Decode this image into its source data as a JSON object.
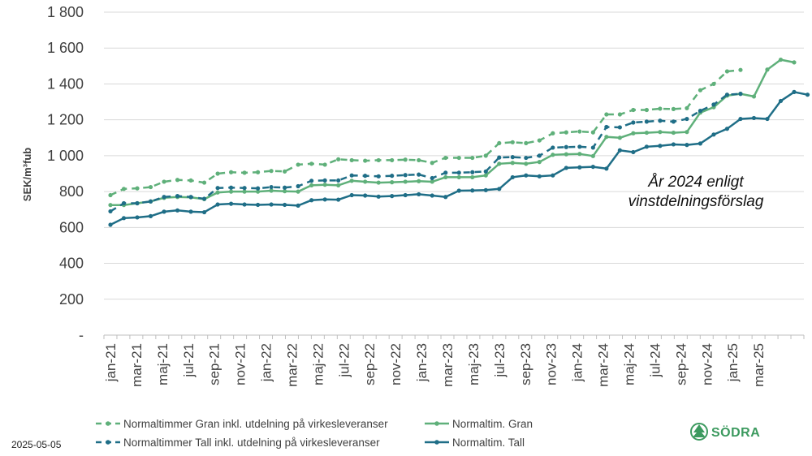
{
  "chart_data": {
    "type": "line",
    "title": "",
    "xlabel": "",
    "ylabel": "SEK/m³fub",
    "ylim": [
      0,
      1800
    ],
    "y_ticks": [
      "-",
      "200",
      "400",
      "600",
      "800",
      "1 000",
      "1 200",
      "1 400",
      "1 600",
      "1 800"
    ],
    "x_tick_labels": [
      "jan-21",
      "mar-21",
      "maj-21",
      "jul-21",
      "sep-21",
      "nov-21",
      "jan-22",
      "mar-22",
      "maj-22",
      "jul-22",
      "sep-22",
      "nov-22",
      "jan-23",
      "mar-23",
      "maj-23",
      "jul-23",
      "sep-23",
      "nov-23",
      "jan-24",
      "mar-24",
      "maj-24",
      "jul-24",
      "sep-24",
      "nov-24",
      "jan-25",
      "mar-25"
    ],
    "x_start": "jan-21",
    "n_months": 27,
    "grid": "horizontal",
    "legend_position": "bottom",
    "annotation": [
      "År 2024 enligt",
      "vinstdelningsförslag"
    ],
    "series": [
      {
        "name": "Normaltimmer Gran inkl. utdelning på virkesleveranser",
        "color": "#5fb07a",
        "dashed": true,
        "values": [
          780,
          815,
          818,
          825,
          855,
          865,
          862,
          850,
          900,
          908,
          905,
          908,
          915,
          912,
          950,
          955,
          950,
          980,
          975,
          972,
          975,
          975,
          978,
          975,
          960,
          988,
          988,
          988,
          1000,
          1070,
          1075,
          1070,
          1085,
          1125,
          1130,
          1135,
          1130,
          1230,
          1230,
          1255,
          1255,
          1262,
          1260,
          1265,
          1365,
          1400,
          1470,
          1478
        ]
      },
      {
        "name": "Normaltim. Gran",
        "color": "#5fb07a",
        "dashed": false,
        "values": [
          725,
          725,
          735,
          745,
          765,
          770,
          768,
          758,
          795,
          800,
          800,
          800,
          805,
          802,
          800,
          835,
          838,
          835,
          860,
          855,
          850,
          852,
          855,
          858,
          855,
          880,
          880,
          880,
          890,
          955,
          960,
          955,
          965,
          1005,
          1008,
          1010,
          998,
          1105,
          1100,
          1125,
          1128,
          1132,
          1128,
          1132,
          1240,
          1270,
          1335,
          1345,
          1330,
          1480,
          1535,
          1520
        ]
      },
      {
        "name": "Normaltimmer Tall inkl. utdelning på virkesleveranser",
        "color": "#1f6e87",
        "dashed": true,
        "values": [
          690,
          735,
          735,
          745,
          770,
          775,
          770,
          760,
          820,
          822,
          820,
          818,
          825,
          822,
          830,
          860,
          862,
          862,
          890,
          888,
          885,
          888,
          892,
          895,
          875,
          905,
          905,
          908,
          912,
          990,
          992,
          988,
          1000,
          1045,
          1048,
          1050,
          1045,
          1160,
          1158,
          1185,
          1190,
          1195,
          1190,
          1205,
          1250,
          1285,
          1340,
          1345
        ]
      },
      {
        "name": "Normaltim. Tall",
        "color": "#1f6e87",
        "dashed": false,
        "values": [
          615,
          652,
          656,
          663,
          688,
          695,
          688,
          685,
          728,
          732,
          728,
          726,
          728,
          726,
          722,
          752,
          756,
          755,
          780,
          778,
          772,
          775,
          780,
          785,
          778,
          770,
          805,
          806,
          808,
          815,
          880,
          890,
          885,
          890,
          932,
          935,
          938,
          928,
          1030,
          1020,
          1050,
          1055,
          1063,
          1060,
          1068,
          1118,
          1150,
          1205,
          1210,
          1205,
          1305,
          1355,
          1340
        ]
      }
    ]
  },
  "footer": {
    "date": "2025-05-05",
    "logo": "SÖDRA"
  }
}
